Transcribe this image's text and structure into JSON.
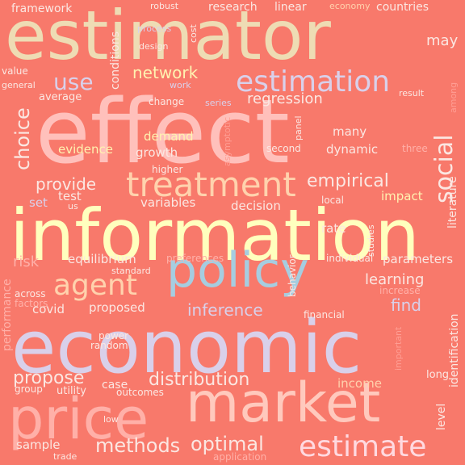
{
  "palette": {
    "background": "#f8796b",
    "cream": "#eedcb4",
    "pink": "#ffc0bb",
    "lavender": "#d9d0ea",
    "blue": "#a6cde0",
    "yellow": "#ffffbe",
    "butter": "#fff2b0",
    "peach": "#ffd2ad",
    "rose": "#ffb0a8",
    "white": "#fbe7e2",
    "coral": "#ff9e94"
  },
  "words": [
    {
      "text": "estimator",
      "color": "#eedcb4",
      "vertical": false
    },
    {
      "text": "effect",
      "color": "#ffc0bb",
      "vertical": false
    },
    {
      "text": "information",
      "color": "#ffffbe",
      "vertical": false
    },
    {
      "text": "economic",
      "color": "#d9d0ea",
      "vertical": false
    },
    {
      "text": "market",
      "color": "#ffc9bd",
      "vertical": false
    },
    {
      "text": "price",
      "color": "#ffb0a8",
      "vertical": false
    },
    {
      "text": "policy",
      "color": "#a6cde0",
      "vertical": false
    },
    {
      "text": "treatment",
      "color": "#ffd2ad",
      "vertical": false
    },
    {
      "text": "estimation",
      "color": "#d9d0ea",
      "vertical": false
    },
    {
      "text": "estimate",
      "color": "#ffd9e0",
      "vertical": false
    },
    {
      "text": "agent",
      "color": "#ffd2ad",
      "vertical": false
    },
    {
      "text": "social",
      "color": "#fbe7e2",
      "vertical": true
    },
    {
      "text": "use",
      "color": "#d9d0ea",
      "vertical": false
    },
    {
      "text": "methods",
      "color": "#fbe7e2",
      "vertical": false
    },
    {
      "text": "optimal",
      "color": "#fbe7e2",
      "vertical": false
    },
    {
      "text": "distribution",
      "color": "#fbe7e2",
      "vertical": false
    },
    {
      "text": "propose",
      "color": "#fbe7e2",
      "vertical": false
    },
    {
      "text": "network",
      "color": "#fff2b0",
      "vertical": false
    },
    {
      "text": "empirical",
      "color": "#fbe7e2",
      "vertical": false
    },
    {
      "text": "choice",
      "color": "#fbe7e2",
      "vertical": true
    },
    {
      "text": "provide",
      "color": "#fbe7e2",
      "vertical": false
    },
    {
      "text": "regression",
      "color": "#fbe7e2",
      "vertical": false
    },
    {
      "text": "inference",
      "color": "#d9d0ea",
      "vertical": false
    },
    {
      "text": "find",
      "color": "#d9d0ea",
      "vertical": false
    },
    {
      "text": "learning",
      "color": "#fbe7e2",
      "vertical": false
    },
    {
      "text": "may",
      "color": "#fbe7e2",
      "vertical": false
    },
    {
      "text": "risk",
      "color": "#ffb0a8",
      "vertical": false
    },
    {
      "text": "framework",
      "color": "#fbe7e2",
      "vertical": false
    },
    {
      "text": "research",
      "color": "#fbe7e2",
      "vertical": false
    },
    {
      "text": "linear",
      "color": "#fbe7e2",
      "vertical": false
    },
    {
      "text": "countries",
      "color": "#fbe7e2",
      "vertical": false
    },
    {
      "text": "economy",
      "color": "#ffd2ad",
      "vertical": false
    },
    {
      "text": "robust",
      "color": "#fbe7e2",
      "vertical": false
    },
    {
      "text": "process",
      "color": "#d9d0ea",
      "vertical": false
    },
    {
      "text": "design",
      "color": "#fbe7e2",
      "vertical": false
    },
    {
      "text": "cost",
      "color": "#fbe7e2",
      "vertical": true
    },
    {
      "text": "value",
      "color": "#fbe7e2",
      "vertical": false
    },
    {
      "text": "general",
      "color": "#fbe7e2",
      "vertical": false
    },
    {
      "text": "average",
      "color": "#fbe7e2",
      "vertical": false
    },
    {
      "text": "conditions",
      "color": "#fbe7e2",
      "vertical": true
    },
    {
      "text": "work",
      "color": "#d9d0ea",
      "vertical": false
    },
    {
      "text": "change",
      "color": "#fbe7e2",
      "vertical": false
    },
    {
      "text": "series",
      "color": "#d9d0ea",
      "vertical": false
    },
    {
      "text": "result",
      "color": "#fbe7e2",
      "vertical": false
    },
    {
      "text": "among",
      "color": "#ff9e94",
      "vertical": true
    },
    {
      "text": "demand",
      "color": "#fff2b0",
      "vertical": false
    },
    {
      "text": "evidence",
      "color": "#fff2b0",
      "vertical": false
    },
    {
      "text": "growth",
      "color": "#fbe7e2",
      "vertical": false
    },
    {
      "text": "asymptotic",
      "color": "#ff9e94",
      "vertical": true
    },
    {
      "text": "panel",
      "color": "#fbe7e2",
      "vertical": true
    },
    {
      "text": "second",
      "color": "#fbe7e2",
      "vertical": false
    },
    {
      "text": "many",
      "color": "#fbe7e2",
      "vertical": false
    },
    {
      "text": "dynamic",
      "color": "#fbe7e2",
      "vertical": false
    },
    {
      "text": "three",
      "color": "#ffb0a8",
      "vertical": false
    },
    {
      "text": "literature",
      "color": "#fbe7e2",
      "vertical": true
    },
    {
      "text": "higher",
      "color": "#fbe7e2",
      "vertical": false
    },
    {
      "text": "test",
      "color": "#fbe7e2",
      "vertical": false
    },
    {
      "text": "set",
      "color": "#d9d0ea",
      "vertical": false
    },
    {
      "text": "us",
      "color": "#fbe7e2",
      "vertical": false
    },
    {
      "text": "variables",
      "color": "#fbe7e2",
      "vertical": false
    },
    {
      "text": "decision",
      "color": "#fbe7e2",
      "vertical": false
    },
    {
      "text": "local",
      "color": "#fbe7e2",
      "vertical": false
    },
    {
      "text": "impact",
      "color": "#fff2b0",
      "vertical": false
    },
    {
      "text": "rate",
      "color": "#fbe7e2",
      "vertical": false
    },
    {
      "text": "studies",
      "color": "#fbe7e2",
      "vertical": true
    },
    {
      "text": "equilibrium",
      "color": "#fbe7e2",
      "vertical": false
    },
    {
      "text": "preferences",
      "color": "#ffb0a8",
      "vertical": false
    },
    {
      "text": "individual",
      "color": "#fbe7e2",
      "vertical": false
    },
    {
      "text": "parameters",
      "color": "#fbe7e2",
      "vertical": false
    },
    {
      "text": "behavior",
      "color": "#fbe7e2",
      "vertical": true
    },
    {
      "text": "standard",
      "color": "#fbe7e2",
      "vertical": false
    },
    {
      "text": "increase",
      "color": "#ffb0a8",
      "vertical": false
    },
    {
      "text": "across",
      "color": "#fbe7e2",
      "vertical": false
    },
    {
      "text": "factors",
      "color": "#ffb0a8",
      "vertical": false
    },
    {
      "text": "covid",
      "color": "#fbe7e2",
      "vertical": false
    },
    {
      "text": "proposed",
      "color": "#fbe7e2",
      "vertical": false
    },
    {
      "text": "financial",
      "color": "#fbe7e2",
      "vertical": false
    },
    {
      "text": "performance",
      "color": "#ffb0a8",
      "vertical": true
    },
    {
      "text": "power",
      "color": "#fbe7e2",
      "vertical": false
    },
    {
      "text": "random",
      "color": "#fbe7e2",
      "vertical": false
    },
    {
      "text": "important",
      "color": "#ff9e94",
      "vertical": true
    },
    {
      "text": "identification",
      "color": "#fbe7e2",
      "vertical": true
    },
    {
      "text": "case",
      "color": "#fbe7e2",
      "vertical": false
    },
    {
      "text": "income",
      "color": "#ffd2ad",
      "vertical": false
    },
    {
      "text": "group",
      "color": "#fbe7e2",
      "vertical": false
    },
    {
      "text": "utility",
      "color": "#fbe7e2",
      "vertical": false
    },
    {
      "text": "outcomes",
      "color": "#fbe7e2",
      "vertical": false
    },
    {
      "text": "long",
      "color": "#fbe7e2",
      "vertical": false
    },
    {
      "text": "level",
      "color": "#fbe7e2",
      "vertical": true
    },
    {
      "text": "low",
      "color": "#fbe7e2",
      "vertical": false
    },
    {
      "text": "sample",
      "color": "#fbe7e2",
      "vertical": false
    },
    {
      "text": "trade",
      "color": "#fbe7e2",
      "vertical": false
    },
    {
      "text": "application",
      "color": "#ffb0a8",
      "vertical": false
    }
  ]
}
